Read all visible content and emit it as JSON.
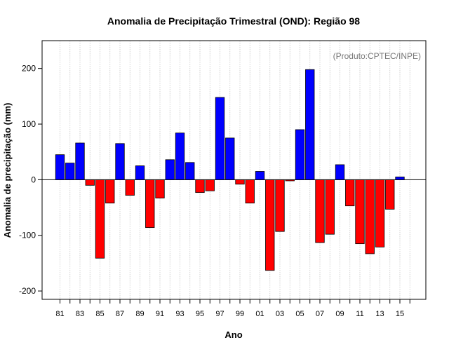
{
  "chart_data": {
    "type": "bar",
    "title": "Anomalia de Precipitação Trimestral (OND): Região 98",
    "annotation": "(Produto:CPTEC/INPE)",
    "xlabel": "Ano",
    "ylabel": "Anomalia de precipitação (mm)",
    "ylim": [
      -215,
      250
    ],
    "yticks": [
      -200,
      -100,
      0,
      100,
      200
    ],
    "grid": "vertical-dotted",
    "colors": {
      "positive": "#0000ff",
      "negative": "#ff0000",
      "grid": "#c8c8c8",
      "axis": "#000000"
    },
    "categories": [
      "81",
      "82",
      "83",
      "84",
      "85",
      "86",
      "87",
      "88",
      "89",
      "90",
      "91",
      "92",
      "93",
      "94",
      "95",
      "96",
      "97",
      "98",
      "99",
      "00",
      "01",
      "02",
      "03",
      "04",
      "05",
      "06",
      "07",
      "08",
      "09",
      "10",
      "11",
      "12",
      "13",
      "14",
      "15"
    ],
    "x_tick_labels": [
      "81",
      "83",
      "85",
      "87",
      "89",
      "91",
      "93",
      "95",
      "97",
      "99",
      "01",
      "03",
      "05",
      "07",
      "09",
      "11",
      "13",
      "15"
    ],
    "values": [
      45,
      30,
      66,
      -10,
      -141,
      -42,
      65,
      -28,
      25,
      -86,
      -33,
      36,
      84,
      31,
      -23,
      -20,
      148,
      75,
      -8,
      -42,
      15,
      -163,
      -93,
      -2,
      90,
      198,
      -113,
      -98,
      27,
      -47,
      -115,
      -133,
      -121,
      -53,
      5
    ]
  }
}
